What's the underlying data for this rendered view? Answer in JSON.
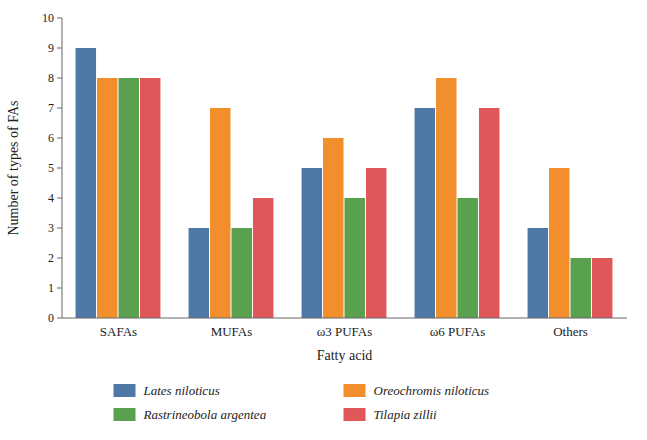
{
  "chart_data": {
    "type": "bar",
    "xlabel": "Fatty acid",
    "ylabel": "Number of types of FAs",
    "categories": [
      "SAFAs",
      "MUFAs",
      "ω3 PUFAs",
      "ω6 PUFAs",
      "Others"
    ],
    "series": [
      {
        "name": "Lates niloticus",
        "color": "#4e79a7",
        "values": [
          9,
          3,
          5,
          7,
          3
        ]
      },
      {
        "name": "Oreochromis niloticus",
        "color": "#f28e2b",
        "values": [
          8,
          7,
          6,
          8,
          5
        ]
      },
      {
        "name": "Rastrineobola argentea",
        "color": "#59a14f",
        "values": [
          8,
          3,
          4,
          4,
          2
        ]
      },
      {
        "name": "Tilapia zillii",
        "color": "#e15759",
        "values": [
          8,
          4,
          5,
          7,
          2
        ]
      }
    ],
    "ylim": [
      0,
      10
    ],
    "yticks": [
      0,
      1,
      2,
      3,
      4,
      5,
      6,
      7,
      8,
      9,
      10
    ],
    "grid": false,
    "legend": "bottom"
  }
}
